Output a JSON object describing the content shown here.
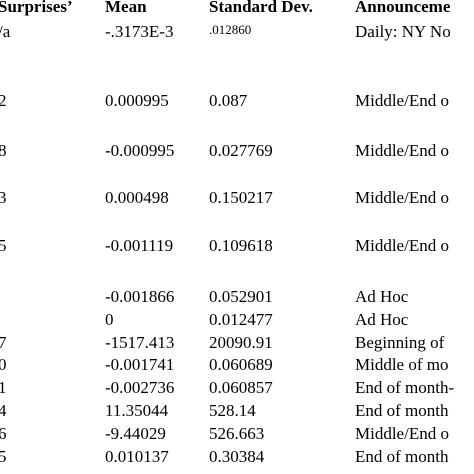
{
  "table": {
    "headers": [
      "Surprises’",
      "Mean",
      "Standard Dev.",
      "Announceme"
    ],
    "rows": [
      {
        "surprises": "/a",
        "mean": "-.3173E-3",
        "std": ".012860",
        "announcement": "Daily: NY No"
      },
      {
        "surprises": "2",
        "mean": "0.000995",
        "std": "0.087",
        "announcement": "Middle/End o"
      },
      {
        "surprises": "8",
        "mean": "-0.000995",
        "std": "0.027769",
        "announcement": "Middle/End o"
      },
      {
        "surprises": "3",
        "mean": "0.000498",
        "std": "0.150217",
        "announcement": "Middle/End o"
      },
      {
        "surprises": "5",
        "mean": "-0.001119",
        "std": "0.109618",
        "announcement": "Middle/End o"
      },
      {
        "surprises": "",
        "mean": "-0.001866",
        "std": "0.052901",
        "announcement": "Ad Hoc"
      },
      {
        "surprises": "",
        "mean": "0",
        "std": "0.012477",
        "announcement": "Ad Hoc"
      },
      {
        "surprises": "7",
        "mean": "-1517.413",
        "std": "20090.91",
        "announcement": "Beginning of"
      },
      {
        "surprises": "0",
        "mean": "-0.001741",
        "std": "0.060689",
        "announcement": "Middle of mo"
      },
      {
        "surprises": "1",
        "mean": "-0.002736",
        "std": "0.060857",
        "announcement": "End of month-"
      },
      {
        "surprises": "4",
        "mean": "11.35044",
        "std": "528.14",
        "announcement": "End of month"
      },
      {
        "surprises": "6",
        "mean": "-9.44029",
        "std": "526.663",
        "announcement": "Middle/End o"
      },
      {
        "surprises": "5",
        "mean": "0.010137",
        "std": "0.30384",
        "announcement": "End of month"
      }
    ]
  }
}
